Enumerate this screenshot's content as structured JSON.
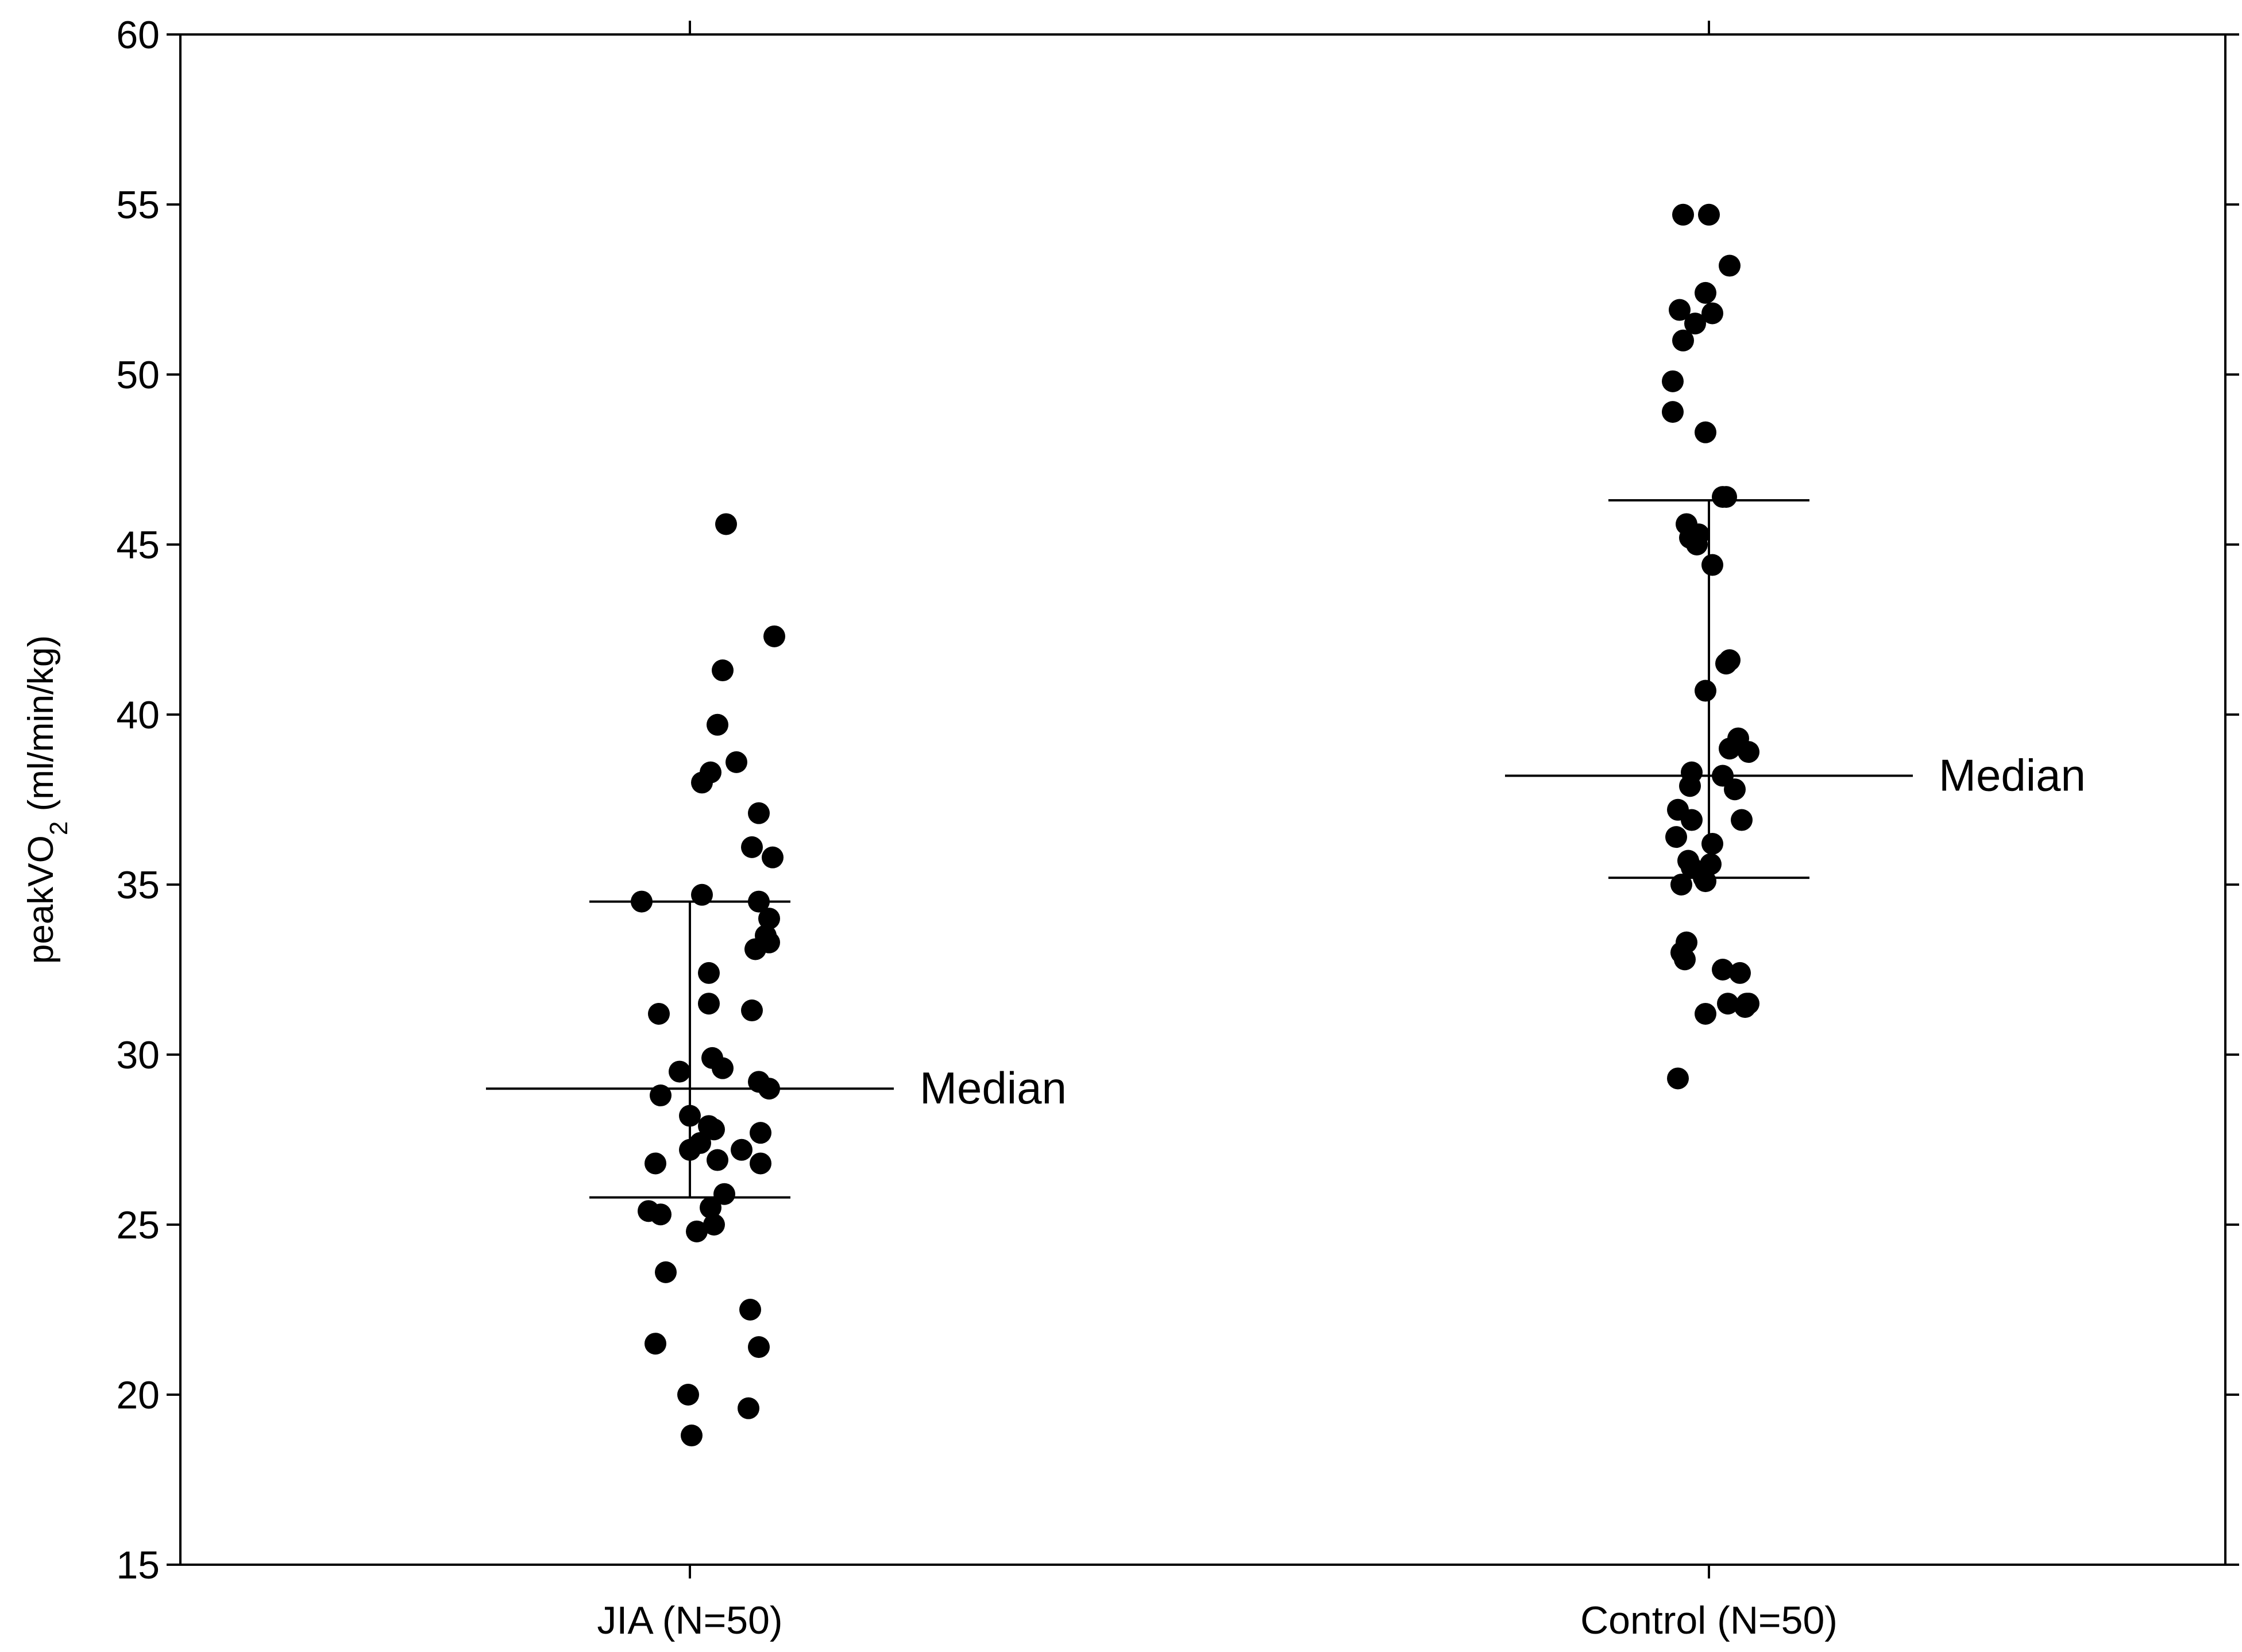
{
  "chart_data": {
    "type": "scatter",
    "title": "",
    "ylabel": {
      "main": "peakVO",
      "sub": "2",
      "rest": " (ml/min/kg)"
    },
    "xlabel": "",
    "ylim": [
      15,
      60
    ],
    "yticks": [
      15,
      20,
      25,
      30,
      35,
      40,
      45,
      50,
      55,
      60
    ],
    "grid": false,
    "groups": [
      {
        "label": "JIA (N=50)",
        "median": 29.0,
        "q1": 25.8,
        "q3": 34.5,
        "median_label": "Median",
        "points": [
          {
            "j": -0.28,
            "y": 34.5
          },
          {
            "j": 0.07,
            "y": 34.7
          },
          {
            "j": 0.4,
            "y": 34.5
          },
          {
            "j": 0.21,
            "y": 45.6
          },
          {
            "j": 0.49,
            "y": 42.3
          },
          {
            "j": 0.19,
            "y": 41.3
          },
          {
            "j": 0.16,
            "y": 39.7
          },
          {
            "j": 0.12,
            "y": 38.3
          },
          {
            "j": 0.07,
            "y": 38.0
          },
          {
            "j": 0.27,
            "y": 38.6
          },
          {
            "j": 0.4,
            "y": 37.1
          },
          {
            "j": 0.36,
            "y": 36.1
          },
          {
            "j": 0.48,
            "y": 35.8
          },
          {
            "j": 0.46,
            "y": 34.0
          },
          {
            "j": 0.44,
            "y": 33.5
          },
          {
            "j": 0.38,
            "y": 33.1
          },
          {
            "j": 0.46,
            "y": 33.3
          },
          {
            "j": 0.11,
            "y": 32.4
          },
          {
            "j": 0.11,
            "y": 31.5
          },
          {
            "j": -0.18,
            "y": 31.2
          },
          {
            "j": 0.36,
            "y": 31.3
          },
          {
            "j": 0.13,
            "y": 29.9
          },
          {
            "j": 0.19,
            "y": 29.6
          },
          {
            "j": -0.06,
            "y": 29.5
          },
          {
            "j": 0.4,
            "y": 29.2
          },
          {
            "j": 0.46,
            "y": 29.0
          },
          {
            "j": -0.17,
            "y": 28.8
          },
          {
            "j": 0.0,
            "y": 28.2
          },
          {
            "j": 0.11,
            "y": 27.9
          },
          {
            "j": 0.14,
            "y": 27.8
          },
          {
            "j": 0.06,
            "y": 27.4
          },
          {
            "j": 0.0,
            "y": 27.2
          },
          {
            "j": 0.3,
            "y": 27.2
          },
          {
            "j": 0.16,
            "y": 26.9
          },
          {
            "j": 0.41,
            "y": 27.7
          },
          {
            "j": -0.2,
            "y": 26.8
          },
          {
            "j": 0.41,
            "y": 26.8
          },
          {
            "j": 0.2,
            "y": 25.9
          },
          {
            "j": 0.12,
            "y": 25.5
          },
          {
            "j": -0.24,
            "y": 25.4
          },
          {
            "j": -0.17,
            "y": 25.3
          },
          {
            "j": 0.04,
            "y": 24.8
          },
          {
            "j": 0.14,
            "y": 25.0
          },
          {
            "j": -0.14,
            "y": 23.6
          },
          {
            "j": 0.35,
            "y": 22.5
          },
          {
            "j": -0.2,
            "y": 21.5
          },
          {
            "j": 0.4,
            "y": 21.4
          },
          {
            "j": -0.01,
            "y": 20.0
          },
          {
            "j": 0.34,
            "y": 19.6
          },
          {
            "j": 0.01,
            "y": 18.8
          }
        ]
      },
      {
        "label": "Control (N=50)",
        "median": 38.2,
        "q1": 35.2,
        "q3": 46.3,
        "median_label": "Median",
        "points": [
          {
            "j": -0.15,
            "y": 54.7
          },
          {
            "j": 0.0,
            "y": 54.7
          },
          {
            "j": 0.12,
            "y": 53.2
          },
          {
            "j": -0.17,
            "y": 51.9
          },
          {
            "j": -0.02,
            "y": 52.4
          },
          {
            "j": 0.02,
            "y": 51.8
          },
          {
            "j": -0.08,
            "y": 51.5
          },
          {
            "j": -0.15,
            "y": 51.0
          },
          {
            "j": -0.21,
            "y": 49.8
          },
          {
            "j": -0.21,
            "y": 48.9
          },
          {
            "j": -0.02,
            "y": 48.3
          },
          {
            "j": 0.08,
            "y": 46.4
          },
          {
            "j": 0.1,
            "y": 46.4
          },
          {
            "j": -0.13,
            "y": 45.6
          },
          {
            "j": -0.11,
            "y": 45.2
          },
          {
            "j": -0.07,
            "y": 45.0
          },
          {
            "j": -0.06,
            "y": 45.3
          },
          {
            "j": 0.02,
            "y": 44.4
          },
          {
            "j": 0.1,
            "y": 41.5
          },
          {
            "j": 0.12,
            "y": 41.6
          },
          {
            "j": -0.02,
            "y": 40.7
          },
          {
            "j": 0.17,
            "y": 39.3
          },
          {
            "j": 0.23,
            "y": 38.9
          },
          {
            "j": 0.12,
            "y": 39.0
          },
          {
            "j": -0.1,
            "y": 38.3
          },
          {
            "j": 0.08,
            "y": 38.2
          },
          {
            "j": 0.15,
            "y": 37.8
          },
          {
            "j": -0.11,
            "y": 37.9
          },
          {
            "j": -0.18,
            "y": 37.2
          },
          {
            "j": -0.1,
            "y": 36.9
          },
          {
            "j": 0.19,
            "y": 36.9
          },
          {
            "j": -0.19,
            "y": 36.4
          },
          {
            "j": 0.02,
            "y": 36.2
          },
          {
            "j": -0.12,
            "y": 35.7
          },
          {
            "j": 0.01,
            "y": 35.6
          },
          {
            "j": -0.1,
            "y": 35.5
          },
          {
            "j": -0.03,
            "y": 35.2
          },
          {
            "j": -0.02,
            "y": 35.1
          },
          {
            "j": -0.16,
            "y": 35.0
          },
          {
            "j": -0.13,
            "y": 33.3
          },
          {
            "j": -0.16,
            "y": 33.0
          },
          {
            "j": -0.14,
            "y": 32.8
          },
          {
            "j": 0.08,
            "y": 32.5
          },
          {
            "j": 0.18,
            "y": 32.4
          },
          {
            "j": 0.11,
            "y": 31.5
          },
          {
            "j": 0.21,
            "y": 31.4
          },
          {
            "j": 0.22,
            "y": 31.5
          },
          {
            "j": 0.23,
            "y": 31.5
          },
          {
            "j": -0.02,
            "y": 31.2
          },
          {
            "j": -0.18,
            "y": 29.3
          }
        ]
      }
    ]
  }
}
